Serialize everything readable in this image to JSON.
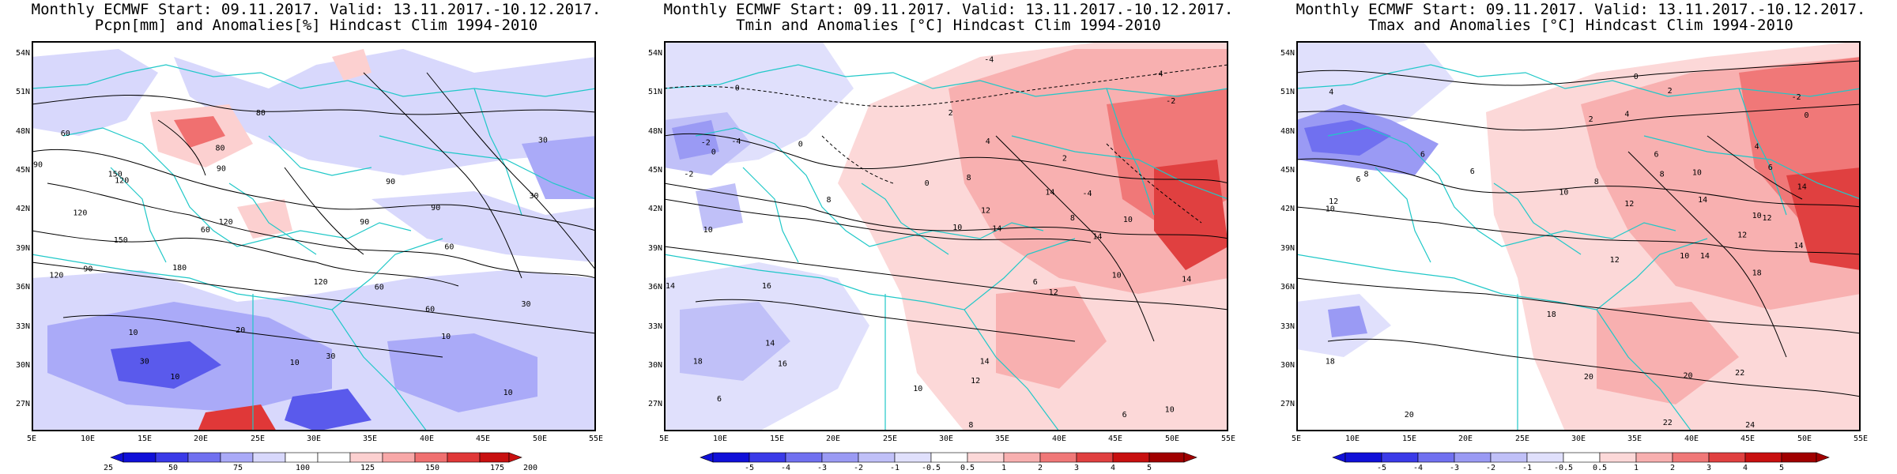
{
  "panels": [
    {
      "title_line1": "Monthly ECMWF Start: 09.11.2017. Valid: 13.11.2017.-10.12.2017.",
      "title_line2": "Pcpn[mm] and Anomalies[%] Hindcast Clim 1994-2010",
      "lat_labels": [
        "54N",
        "51N",
        "48N",
        "45N",
        "42N",
        "39N",
        "36N",
        "33N",
        "30N",
        "27N"
      ],
      "lon_labels": [
        "5E",
        "10E",
        "15E",
        "20E",
        "25E",
        "30E",
        "35E",
        "40E",
        "45E",
        "50E",
        "55E"
      ],
      "colorbar_labels": [
        "25",
        "50",
        "75",
        "100",
        "125",
        "150",
        "175",
        "200"
      ],
      "colorbar_colors": [
        "#1010d8",
        "#3a3ae8",
        "#7070f0",
        "#aaaaf8",
        "#d8d8fc",
        "#ffffff",
        "#ffffff",
        "#fcd0d0",
        "#f8a8a8",
        "#f07070",
        "#e03838",
        "#c81010"
      ],
      "contour_labels": [
        {
          "text": "90",
          "x": -0.95,
          "y": 45.8
        },
        {
          "text": "120",
          "x": 13,
          "y": 44.6
        },
        {
          "text": "150",
          "x": 12.4,
          "y": 45.1
        },
        {
          "text": "60",
          "x": 8,
          "y": 48.2
        },
        {
          "text": "80",
          "x": 25.3,
          "y": 49.8
        },
        {
          "text": "80",
          "x": 21.7,
          "y": 47.1
        },
        {
          "text": "90",
          "x": 21.8,
          "y": 45.5
        },
        {
          "text": "90",
          "x": 36.8,
          "y": 44.5
        },
        {
          "text": "30",
          "x": 49.5,
          "y": 43.4
        },
        {
          "text": "120",
          "x": 22.2,
          "y": 41.4
        },
        {
          "text": "60",
          "x": 20.4,
          "y": 40.8
        },
        {
          "text": "120",
          "x": 9.3,
          "y": 42.1
        },
        {
          "text": "150",
          "x": 12.9,
          "y": 40.0
        },
        {
          "text": "90",
          "x": 10,
          "y": 37.8
        },
        {
          "text": "120",
          "x": 7.2,
          "y": 37.3
        },
        {
          "text": "180",
          "x": 18.1,
          "y": 37.9
        },
        {
          "text": "120",
          "x": 30.6,
          "y": 36.8
        },
        {
          "text": "60",
          "x": 35.8,
          "y": 36.4
        },
        {
          "text": "90",
          "x": 34.5,
          "y": 41.4
        },
        {
          "text": "90",
          "x": 40.8,
          "y": 42.5
        },
        {
          "text": "60",
          "x": 42,
          "y": 39.5
        },
        {
          "text": "60",
          "x": 40.3,
          "y": 34.7
        },
        {
          "text": "30",
          "x": 48.8,
          "y": 35.1
        },
        {
          "text": "30",
          "x": 50.3,
          "y": 47.7
        },
        {
          "text": "10",
          "x": 41.7,
          "y": 32.6
        },
        {
          "text": "20",
          "x": 23.5,
          "y": 33.1
        },
        {
          "text": "10",
          "x": 14,
          "y": 32.9
        },
        {
          "text": "30",
          "x": 15,
          "y": 30.7
        },
        {
          "text": "10",
          "x": 17.7,
          "y": 29.5
        },
        {
          "text": "10",
          "x": 28.3,
          "y": 30.6
        },
        {
          "text": "30",
          "x": 31.5,
          "y": 31.1
        },
        {
          "text": "10",
          "x": 47.2,
          "y": 28.3
        }
      ]
    },
    {
      "title_line1": "Monthly ECMWF Start: 09.11.2017. Valid: 13.11.2017.-10.12.2017.",
      "title_line2": "Tmin and Anomalies [°C] Hindcast Clim 1994-2010",
      "lat_labels": [
        "54N",
        "51N",
        "48N",
        "45N",
        "42N",
        "39N",
        "36N",
        "33N",
        "30N",
        "27N"
      ],
      "lon_labels": [
        "5E",
        "10E",
        "15E",
        "20E",
        "25E",
        "30E",
        "35E",
        "40E",
        "45E",
        "50E",
        "55E"
      ],
      "colorbar_labels": [
        "-5",
        "-4",
        "-3",
        "-2",
        "-1",
        "-0.5",
        "0.5",
        "1",
        "2",
        "3",
        "4",
        "5"
      ],
      "colorbar_colors": [
        "#1010d8",
        "#3a3ae8",
        "#7070f0",
        "#9a9af4",
        "#c0c0f8",
        "#e0e0fc",
        "#ffffff",
        "#fcd8d8",
        "#f8b0b0",
        "#f07878",
        "#e04040",
        "#c81010",
        "#a00000"
      ],
      "contour_labels": [
        {
          "text": "-4",
          "x": 33.8,
          "y": 53.9
        },
        {
          "text": "-4",
          "x": 48.8,
          "y": 52.8
        },
        {
          "text": "-2",
          "x": 49.9,
          "y": 50.7
        },
        {
          "text": "0",
          "x": 11.5,
          "y": 51.7
        },
        {
          "text": "0",
          "x": 17.1,
          "y": 47.4
        },
        {
          "text": "-2",
          "x": 8.7,
          "y": 47.5
        },
        {
          "text": "-4",
          "x": 11.4,
          "y": 47.6
        },
        {
          "text": "0",
          "x": 9.4,
          "y": 46.8
        },
        {
          "text": "-2",
          "x": 7.2,
          "y": 45.1
        },
        {
          "text": "2",
          "x": 30.4,
          "y": 49.8
        },
        {
          "text": "2",
          "x": 40.5,
          "y": 46.3
        },
        {
          "text": "0",
          "x": 28.3,
          "y": 44.4
        },
        {
          "text": "8",
          "x": 32,
          "y": 44.8
        },
        {
          "text": "4",
          "x": 33.7,
          "y": 47.6
        },
        {
          "text": "14",
          "x": 39.2,
          "y": 43.7
        },
        {
          "text": "-4",
          "x": 42.5,
          "y": 43.6
        },
        {
          "text": "12",
          "x": 33.5,
          "y": 42.3
        },
        {
          "text": "8",
          "x": 19.6,
          "y": 43.1
        },
        {
          "text": "10",
          "x": 31,
          "y": 41
        },
        {
          "text": "14",
          "x": 34.5,
          "y": 40.9
        },
        {
          "text": "10",
          "x": 46.1,
          "y": 41.6
        },
        {
          "text": "8",
          "x": 41.2,
          "y": 41.7
        },
        {
          "text": "14",
          "x": 43.4,
          "y": 40.3
        },
        {
          "text": "10",
          "x": 8.9,
          "y": 40.8
        },
        {
          "text": "14",
          "x": 4.2,
          "y": 36.5
        },
        {
          "text": "16",
          "x": 14.1,
          "y": 36.5
        },
        {
          "text": "6",
          "x": 37.9,
          "y": 36.8
        },
        {
          "text": "12",
          "x": 39.5,
          "y": 36
        },
        {
          "text": "10",
          "x": 45.1,
          "y": 37.3
        },
        {
          "text": "14",
          "x": 51.3,
          "y": 37
        },
        {
          "text": "14",
          "x": 14.4,
          "y": 32.1
        },
        {
          "text": "18",
          "x": 8,
          "y": 30.7
        },
        {
          "text": "16",
          "x": 15.5,
          "y": 30.5
        },
        {
          "text": "14",
          "x": 33.4,
          "y": 30.7
        },
        {
          "text": "12",
          "x": 32.6,
          "y": 29.2
        },
        {
          "text": "6",
          "x": 9.9,
          "y": 27.8
        },
        {
          "text": "10",
          "x": 27.5,
          "y": 28.6
        },
        {
          "text": "8",
          "x": 32.2,
          "y": 25.8
        },
        {
          "text": "6",
          "x": 45.8,
          "y": 26.6
        },
        {
          "text": "10",
          "x": 49.8,
          "y": 27
        }
      ]
    },
    {
      "title_line1": "Monthly ECMWF Start: 09.11.2017. Valid: 13.11.2017.-10.12.2017.",
      "title_line2": "Tmax and Anomalies [°C] Hindcast Clim 1994-2010",
      "lat_labels": [
        "54N",
        "51N",
        "48N",
        "45N",
        "42N",
        "39N",
        "36N",
        "33N",
        "30N",
        "27N"
      ],
      "lon_labels": [
        "5E",
        "10E",
        "15E",
        "20E",
        "25E",
        "30E",
        "35E",
        "40E",
        "45E",
        "50E",
        "55E"
      ],
      "colorbar_labels": [
        "-5",
        "-4",
        "-3",
        "-2",
        "-1",
        "-0.5",
        "0.5",
        "1",
        "2",
        "3",
        "4",
        "5"
      ],
      "colorbar_colors": [
        "#1010d8",
        "#3a3ae8",
        "#7070f0",
        "#9a9af4",
        "#c0c0f8",
        "#e0e0fc",
        "#ffffff",
        "#fcd8d8",
        "#f8b0b0",
        "#f07878",
        "#e04040",
        "#c81010",
        "#a00000"
      ],
      "contour_labels": [
        {
          "text": "0",
          "x": 35.1,
          "y": 52.6
        },
        {
          "text": "2",
          "x": 38.1,
          "y": 51.5
        },
        {
          "text": "-2",
          "x": 49.3,
          "y": 51
        },
        {
          "text": "4",
          "x": 8.1,
          "y": 51.4
        },
        {
          "text": "0",
          "x": 50.2,
          "y": 49.6
        },
        {
          "text": "2",
          "x": 31.1,
          "y": 49.3
        },
        {
          "text": "4",
          "x": 34.3,
          "y": 49.7
        },
        {
          "text": "4",
          "x": 45.8,
          "y": 47.2
        },
        {
          "text": "6",
          "x": 16.2,
          "y": 46.6
        },
        {
          "text": "6",
          "x": 36.9,
          "y": 46.6
        },
        {
          "text": "6",
          "x": 10.5,
          "y": 44.7
        },
        {
          "text": "8",
          "x": 11.2,
          "y": 45.1
        },
        {
          "text": "6",
          "x": 47,
          "y": 45.6
        },
        {
          "text": "8",
          "x": 37.4,
          "y": 45.1
        },
        {
          "text": "10",
          "x": 40.5,
          "y": 45.2
        },
        {
          "text": "8",
          "x": 31.6,
          "y": 44.5
        },
        {
          "text": "6",
          "x": 20.6,
          "y": 45.3
        },
        {
          "text": "10",
          "x": 28.7,
          "y": 43.7
        },
        {
          "text": "14",
          "x": 49.8,
          "y": 44.1
        },
        {
          "text": "12",
          "x": 34.5,
          "y": 42.8
        },
        {
          "text": "14",
          "x": 41,
          "y": 43.1
        },
        {
          "text": "12",
          "x": 8.3,
          "y": 43
        },
        {
          "text": "10",
          "x": 8,
          "y": 42.4
        },
        {
          "text": "12",
          "x": 46.7,
          "y": 41.7
        },
        {
          "text": "10",
          "x": 45.8,
          "y": 41.9
        },
        {
          "text": "12",
          "x": 44.5,
          "y": 40.4
        },
        {
          "text": "14",
          "x": 49.5,
          "y": 39.6
        },
        {
          "text": "12",
          "x": 33.2,
          "y": 38.5
        },
        {
          "text": "10",
          "x": 39.4,
          "y": 38.8
        },
        {
          "text": "14",
          "x": 41.2,
          "y": 38.8
        },
        {
          "text": "18",
          "x": 45.8,
          "y": 37.5
        },
        {
          "text": "18",
          "x": 27.6,
          "y": 34.3
        },
        {
          "text": "18",
          "x": 8,
          "y": 30.7
        },
        {
          "text": "20",
          "x": 30.9,
          "y": 29.5
        },
        {
          "text": "20",
          "x": 39.7,
          "y": 29.6
        },
        {
          "text": "22",
          "x": 44.3,
          "y": 29.8
        },
        {
          "text": "20",
          "x": 15,
          "y": 26.6
        },
        {
          "text": "22",
          "x": 37.9,
          "y": 26
        },
        {
          "text": "24",
          "x": 45.2,
          "y": 25.8
        }
      ]
    }
  ]
}
